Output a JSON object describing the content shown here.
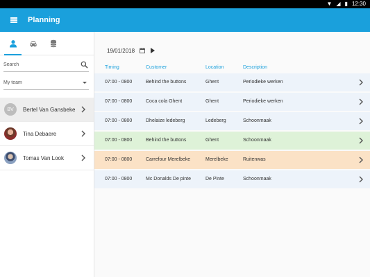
{
  "statusbar": {
    "time": "12:30"
  },
  "appbar": {
    "title": "Planning"
  },
  "sidebar": {
    "tabs": [
      {
        "icon": "person-icon",
        "active": true
      },
      {
        "icon": "car-icon",
        "active": false
      },
      {
        "icon": "database-icon",
        "active": false
      }
    ],
    "search": {
      "placeholder": "Search",
      "value": ""
    },
    "team": {
      "value": "My team"
    },
    "people": [
      {
        "name": "Bertel Van Gansbeke",
        "initials": "BV",
        "selected": true
      },
      {
        "name": "Tina Debaere",
        "initials": "",
        "selected": false
      },
      {
        "name": "Tomas Van Look",
        "initials": "",
        "selected": false
      }
    ]
  },
  "main": {
    "date": "19/01/2018",
    "columns": {
      "timing": "Timing",
      "customer": "Customer",
      "location": "Location",
      "description": "Description"
    },
    "rows": [
      {
        "timing": "07:00 - 0800",
        "customer": "Behind the buttons",
        "location": "Ghent",
        "description": "Periodieke werken",
        "color": "#edf3fa"
      },
      {
        "timing": "07:00 - 0800",
        "customer": "Coca cola Ghent",
        "location": "Ghent",
        "description": "Periodieke werken",
        "color": "#edf3fa"
      },
      {
        "timing": "07:00 - 0800",
        "customer": "Dhelaize ledeberg",
        "location": "Ledeberg",
        "description": "Schoonmaak",
        "color": "#edf3fa"
      },
      {
        "timing": "07:00 - 0800",
        "customer": "Behind the buttons",
        "location": "Ghent",
        "description": "Schoonmaak",
        "color": "#def2d8"
      },
      {
        "timing": "07:00 - 0800",
        "customer": "Carrefour Merelbeke",
        "location": "Merelbeke",
        "description": "Ruitenwas",
        "color": "#fbe2c6"
      },
      {
        "timing": "07:00 - 0800",
        "customer": "Mc Donalds De pinte",
        "location": "De Pinte",
        "description": "Schoonmaak",
        "color": "#edf3fa"
      }
    ]
  },
  "colors": {
    "accent": "#1aa0dc",
    "row_default": "#edf3fa",
    "row_green": "#def2d8",
    "row_orange": "#fbe2c6"
  }
}
